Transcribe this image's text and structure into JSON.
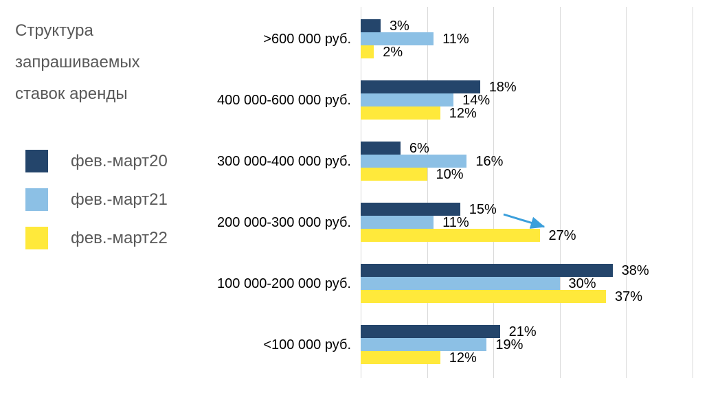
{
  "title": {
    "lines": [
      "Структура",
      "запрашиваемых",
      "ставок аренды"
    ]
  },
  "legend": {
    "position": "left",
    "items": [
      {
        "label": "фев.-март20",
        "color": "#24456B"
      },
      {
        "label": "фев.-март21",
        "color": "#8CC0E5"
      },
      {
        "label": "фев.-март22",
        "color": "#FFE93B"
      }
    ]
  },
  "chart_data": {
    "type": "bar",
    "orientation": "horizontal",
    "title": "Структура запрашиваемых ставок аренды",
    "categories": [
      ">600 000 руб.",
      "400 000-600 000 руб.",
      "300 000-400 000 руб.",
      "200 000-300 000 руб.",
      "100 000-200 000 руб.",
      "<100 000 руб."
    ],
    "series": [
      {
        "name": "фев.-март20",
        "color": "#24456B",
        "values": [
          3,
          18,
          6,
          15,
          38,
          21
        ]
      },
      {
        "name": "фев.-март21",
        "color": "#8CC0E5",
        "values": [
          11,
          14,
          16,
          11,
          30,
          19
        ]
      },
      {
        "name": "фев.-март22",
        "color": "#FFE93B",
        "values": [
          2,
          12,
          10,
          27,
          37,
          12
        ]
      }
    ],
    "value_suffix": "%",
    "value_labels": true,
    "xlim": [
      0,
      50
    ],
    "gridline_interval": 10,
    "grid": true,
    "legend_position": "left",
    "annotation_arrow": {
      "from": "15%",
      "to": "27%",
      "description": "arrow from 15% label (фев.-март20) to end of 27% bar (фев.-март22) in category 200 000-300 000 руб.",
      "color": "#3B9FDB"
    },
    "colors": {
      "gridline": "#D9D9D9",
      "title_text": "#595959",
      "label_text": "#000000"
    }
  }
}
